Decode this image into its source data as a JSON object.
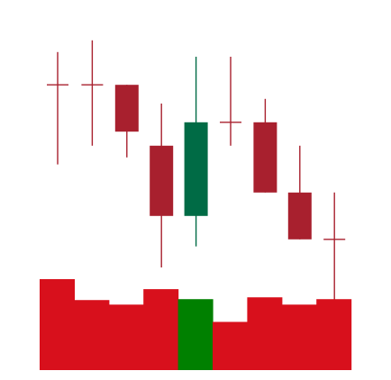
{
  "chart_data": [
    {
      "type": "candlestick",
      "title": "",
      "xlabel": "",
      "ylabel": "",
      "grid": false,
      "legend": "none",
      "ylim": [
        0,
        100
      ],
      "colors": {
        "up": "#006b45",
        "down": "#a8202e"
      },
      "candles": [
        {
          "open": 83,
          "high": 97,
          "low": 49,
          "close": 83
        },
        {
          "open": 83,
          "high": 102,
          "low": 57,
          "close": 83
        },
        {
          "open": 83,
          "high": 83,
          "low": 52,
          "close": 63
        },
        {
          "open": 57,
          "high": 75,
          "low": 5,
          "close": 27
        },
        {
          "open": 27,
          "high": 95,
          "low": 14,
          "close": 67
        },
        {
          "open": 67,
          "high": 95,
          "low": 57,
          "close": 67
        },
        {
          "open": 67,
          "high": 77,
          "low": 37,
          "close": 37
        },
        {
          "open": 37,
          "high": 57,
          "low": 17,
          "close": 17
        },
        {
          "open": 17,
          "high": 37,
          "low": -22,
          "close": 17
        }
      ]
    },
    {
      "type": "bar",
      "title": "",
      "xlabel": "",
      "ylabel": "",
      "grid": false,
      "legend": "none",
      "ylim": [
        0,
        100
      ],
      "colors": {
        "up": "#008000",
        "down": "#d8101c"
      },
      "values": [
        100,
        77,
        72,
        89,
        78,
        53,
        80,
        72,
        78
      ],
      "direction": [
        "down",
        "down",
        "down",
        "down",
        "up",
        "down",
        "down",
        "down",
        "down"
      ]
    }
  ]
}
